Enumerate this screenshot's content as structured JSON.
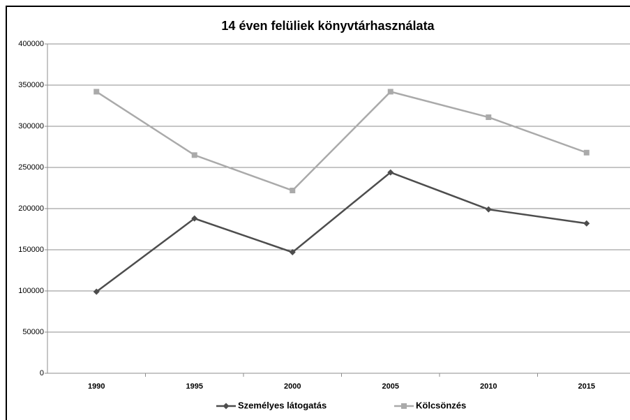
{
  "chart_data": {
    "type": "line",
    "title": "14 éven felüliek könyvtárhasználata",
    "categories": [
      "1990",
      "1995",
      "2000",
      "2005",
      "2010",
      "2015"
    ],
    "series": [
      {
        "name": "Személyes látogatás",
        "color": "#4d4d4d",
        "marker": "diamond",
        "values": [
          99000,
          188000,
          147000,
          244000,
          199000,
          182000
        ]
      },
      {
        "name": "Kölcsönzés",
        "color": "#aaaaaa",
        "marker": "square",
        "values": [
          342000,
          265000,
          222000,
          342000,
          311000,
          268000
        ]
      }
    ],
    "ylim": [
      0,
      400000
    ],
    "yticks": [
      0,
      50000,
      100000,
      150000,
      200000,
      250000,
      300000,
      350000,
      400000
    ],
    "grid": true,
    "legend": "bottom"
  }
}
